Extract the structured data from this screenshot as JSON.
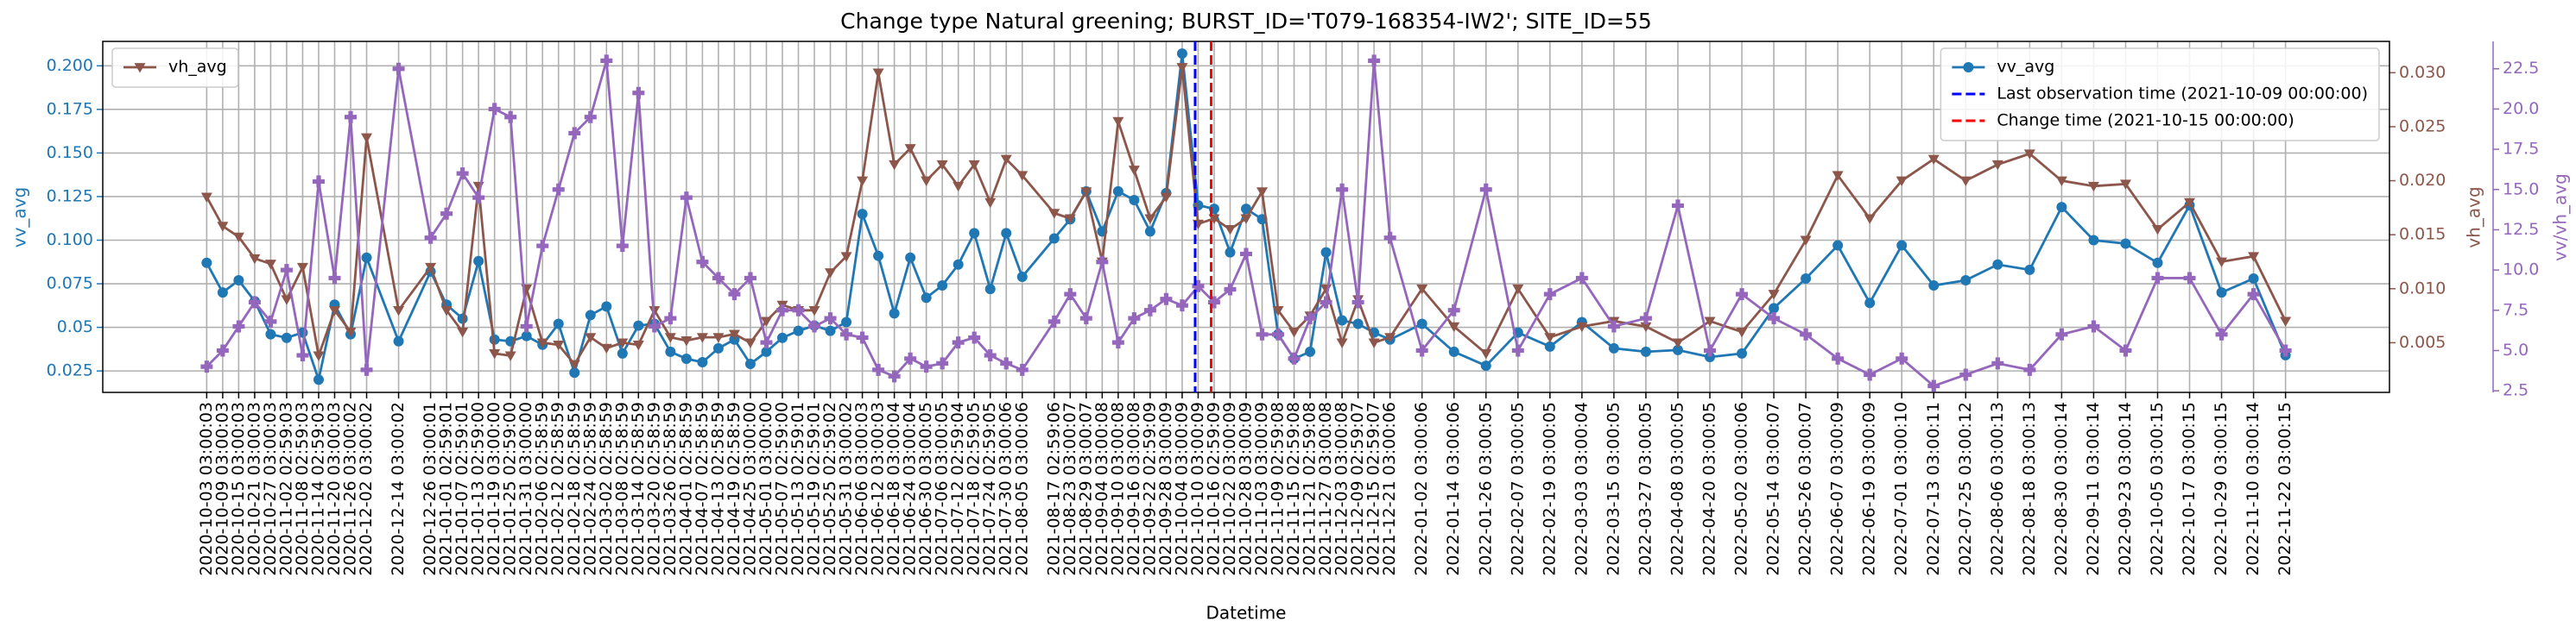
{
  "chart_data": {
    "type": "line",
    "title": "Change type Natural greening; BURST_ID='T079-168354-IW2'; SITE_ID=55",
    "xlabel": "Datetime",
    "ylabel": "vv_avg",
    "y2label": "vh_avg",
    "y3label": "vv/vh_avg",
    "grid": true,
    "x": [
      "2020-10-03 03:00:03",
      "2020-10-09 03:00:03",
      "2020-10-15 03:00:03",
      "2020-10-21 03:00:03",
      "2020-10-27 03:00:03",
      "2020-11-02 02:59:03",
      "2020-11-08 02:59:03",
      "2020-11-14 02:59:03",
      "2020-11-20 03:00:03",
      "2020-11-26 03:00:02",
      "2020-12-02 03:00:02",
      "2020-12-14 03:00:02",
      "2020-12-26 03:00:01",
      "2021-01-01 02:59:01",
      "2021-01-07 02:59:01",
      "2021-01-13 02:59:00",
      "2021-01-19 03:00:00",
      "2021-01-25 02:59:00",
      "2021-01-31 03:00:00",
      "2021-02-06 02:58:59",
      "2021-02-12 02:58:59",
      "2021-02-18 02:58:59",
      "2021-02-24 02:58:59",
      "2021-03-02 02:58:59",
      "2021-03-08 02:58:59",
      "2021-03-14 02:58:59",
      "2021-03-20 02:58:59",
      "2021-03-26 02:58:59",
      "2021-04-01 02:58:59",
      "2021-04-07 02:58:59",
      "2021-04-13 02:58:59",
      "2021-04-19 02:58:59",
      "2021-04-25 03:00:00",
      "2021-05-01 03:00:00",
      "2021-05-07 02:59:00",
      "2021-05-13 02:59:01",
      "2021-05-19 02:59:01",
      "2021-05-25 02:59:02",
      "2021-05-31 03:00:02",
      "2021-06-06 03:00:03",
      "2021-06-12 03:00:03",
      "2021-06-18 03:00:04",
      "2021-06-24 03:00:04",
      "2021-06-30 03:00:05",
      "2021-07-06 03:00:05",
      "2021-07-12 02:59:04",
      "2021-07-18 02:59:05",
      "2021-07-24 02:59:05",
      "2021-07-30 03:00:06",
      "2021-08-05 03:00:06",
      "2021-08-17 02:59:06",
      "2021-08-23 03:00:07",
      "2021-08-29 03:00:07",
      "2021-09-04 03:00:08",
      "2021-09-10 03:00:08",
      "2021-09-16 03:00:08",
      "2021-09-22 02:59:09",
      "2021-09-28 03:00:09",
      "2021-10-04 03:00:09",
      "2021-10-10 03:00:09",
      "2021-10-16 02:59:09",
      "2021-10-22 03:00:09",
      "2021-10-28 03:00:09",
      "2021-11-03 03:00:09",
      "2021-11-09 02:59:08",
      "2021-11-15 02:59:08",
      "2021-11-21 02:59:08",
      "2021-11-27 03:00:08",
      "2021-12-03 03:00:08",
      "2021-12-09 02:59:07",
      "2021-12-15 02:59:07",
      "2021-12-21 03:00:06",
      "2022-01-02 03:00:06",
      "2022-01-14 03:00:06",
      "2022-01-26 03:00:05",
      "2022-02-07 03:00:05",
      "2022-02-19 03:00:05",
      "2022-03-03 03:00:04",
      "2022-03-15 03:00:05",
      "2022-03-27 03:00:05",
      "2022-04-08 03:00:05",
      "2022-04-20 03:00:05",
      "2022-05-02 03:00:06",
      "2022-05-14 03:00:07",
      "2022-05-26 03:00:07",
      "2022-06-07 03:00:09",
      "2022-06-19 03:00:09",
      "2022-07-01 03:00:10",
      "2022-07-13 03:00:11",
      "2022-07-25 03:00:12",
      "2022-08-06 03:00:13",
      "2022-08-18 03:00:13",
      "2022-08-30 03:00:14",
      "2022-09-11 03:00:14",
      "2022-09-23 03:00:14",
      "2022-10-05 03:00:15",
      "2022-10-17 03:00:15",
      "2022-10-29 03:00:15",
      "2022-11-10 03:00:14",
      "2022-11-22 03:00:15"
    ],
    "ylim": [
      0.0127,
      0.214
    ],
    "yticks": [
      0.025,
      0.05,
      {
        "value": 0.075,
        "label": "0.075"
      },
      {
        "value": 0.1,
        "label": "0.100"
      },
      0.125,
      {
        "value": 0.15,
        "label": "0.150"
      },
      0.175,
      {
        "value": 0.2,
        "label": "0.200"
      }
    ],
    "y2lim": [
      0.0004,
      0.0329
    ],
    "y2ticks": [
      0.005,
      {
        "value": 0.01,
        "label": "0.010"
      },
      0.015,
      {
        "value": 0.02,
        "label": "0.020"
      },
      0.025,
      {
        "value": 0.03,
        "label": "0.030"
      }
    ],
    "y3lim": [
      2.4,
      24.2
    ],
    "y3ticks": [
      2.5,
      {
        "value": 5,
        "label": "5.0"
      },
      7.5,
      {
        "value": 10,
        "label": "10.0"
      },
      12.5,
      {
        "value": 15,
        "label": "15.0"
      },
      17.5,
      {
        "value": 20,
        "label": "20.0"
      },
      22.5
    ],
    "series": [
      {
        "name": "vv_avg",
        "color": "#1f77b4",
        "marker": "circle",
        "legend": "upper right",
        "values": [
          0.087,
          0.07,
          0.077,
          0.065,
          0.046,
          0.044,
          0.047,
          0.02,
          0.063,
          0.046,
          0.09,
          0.042,
          0.082,
          0.063,
          0.055,
          0.088,
          0.043,
          0.042,
          0.045,
          0.04,
          0.052,
          0.024,
          0.057,
          0.062,
          0.035,
          0.051,
          0.052,
          0.036,
          0.032,
          0.03,
          0.038,
          0.043,
          0.029,
          0.036,
          0.044,
          0.048,
          0.051,
          0.048,
          0.053,
          0.115,
          0.091,
          0.058,
          0.09,
          0.067,
          0.074,
          0.086,
          0.104,
          0.072,
          0.104,
          0.079,
          0.101,
          0.112,
          0.128,
          0.105,
          0.128,
          0.123,
          0.105,
          0.127,
          0.207,
          0.12,
          0.118,
          0.093,
          0.118,
          0.112,
          0.046,
          0.032,
          0.036,
          0.093,
          0.054,
          0.052,
          0.047,
          0.043,
          0.052,
          0.036,
          0.028,
          0.047,
          0.039,
          0.053,
          0.038,
          0.036,
          0.037,
          0.033,
          0.035,
          0.061,
          0.078,
          0.097,
          0.064,
          0.097,
          0.074,
          0.077,
          0.086,
          0.083,
          0.119,
          0.1,
          0.098,
          0.087,
          0.12,
          0.07,
          0.078,
          0.034
        ]
      },
      {
        "name": "vh_avg",
        "color": "#8c564b",
        "marker": "triangle-down",
        "axis": "y2",
        "legend": "upper left",
        "values": [
          0.0185,
          0.0158,
          0.0148,
          0.0128,
          0.0123,
          0.009,
          0.012,
          0.0038,
          0.008,
          0.006,
          0.024,
          0.008,
          0.012,
          0.008,
          0.006,
          0.0195,
          0.004,
          0.0038,
          0.01,
          0.005,
          0.0048,
          0.003,
          0.0055,
          0.0045,
          0.005,
          0.0048,
          0.008,
          0.0055,
          0.0052,
          0.0055,
          0.0055,
          0.0058,
          0.005,
          0.007,
          0.0085,
          0.008,
          0.008,
          0.0115,
          0.013,
          0.02,
          0.03,
          0.0215,
          0.023,
          0.02,
          0.0215,
          0.0195,
          0.0215,
          0.018,
          0.022,
          0.0205,
          0.017,
          0.0165,
          0.019,
          0.0125,
          0.0255,
          0.021,
          0.0165,
          0.0185,
          0.0305,
          0.016,
          0.0165,
          0.0155,
          0.0165,
          0.019,
          0.008,
          0.006,
          0.0075,
          0.01,
          0.005,
          0.009,
          0.005,
          0.0055,
          0.01,
          0.0065,
          0.004,
          0.01,
          0.0055,
          0.0065,
          0.007,
          0.0065,
          0.005,
          0.007,
          0.006,
          0.0095,
          0.0145,
          0.0205,
          0.0165,
          0.02,
          0.022,
          0.02,
          0.0215,
          0.0225,
          0.02,
          0.0195,
          0.0197,
          0.0155,
          0.018,
          0.0125,
          0.013,
          0.007
        ]
      },
      {
        "color": "#9467bd",
        "marker": "plus",
        "axis": "y3",
        "values": [
          4.0,
          5.0,
          6.5,
          8.0,
          6.8,
          10.0,
          4.7,
          15.5,
          9.5,
          19.5,
          3.8,
          22.5,
          12.0,
          13.5,
          16.0,
          14.5,
          20.0,
          19.5,
          6.5,
          11.5,
          15.0,
          18.5,
          19.5,
          23.0,
          11.5,
          21.0,
          6.5,
          7.0,
          14.5,
          10.5,
          9.5,
          8.5,
          9.5,
          5.5,
          7.5,
          7.5,
          6.5,
          7.0,
          6.0,
          5.8,
          3.8,
          3.4,
          4.5,
          4.0,
          4.2,
          5.5,
          5.8,
          4.7,
          4.2,
          3.8,
          6.8,
          8.5,
          7.0,
          10.5,
          5.5,
          7.0,
          7.5,
          8.2,
          7.8,
          9.0,
          8.0,
          8.8,
          11.0,
          6.0,
          6.0,
          4.5,
          7.0,
          8.0,
          15.0,
          8.0,
          23.0,
          12.0,
          5.0,
          7.5,
          15.0,
          5.0,
          8.5,
          9.5,
          6.5,
          7.0,
          14.0,
          5.0,
          8.5,
          7.0,
          6.0,
          4.5,
          3.5,
          4.5,
          2.8,
          3.5,
          4.2,
          3.8,
          6.0,
          6.5,
          5.0,
          9.5,
          9.5,
          6.0,
          8.5,
          5.0
        ]
      }
    ],
    "vlines": [
      {
        "name": "Last observation time (2021-10-09 00:00:00)",
        "color": "#0000ff",
        "x": "2021-10-09 00:00:00",
        "legend": "upper right"
      },
      {
        "name": "Change time (2021-10-15 00:00:00)",
        "color": "#ff0000",
        "x": "2021-10-15 00:00:00",
        "legend": "upper right"
      }
    ]
  }
}
